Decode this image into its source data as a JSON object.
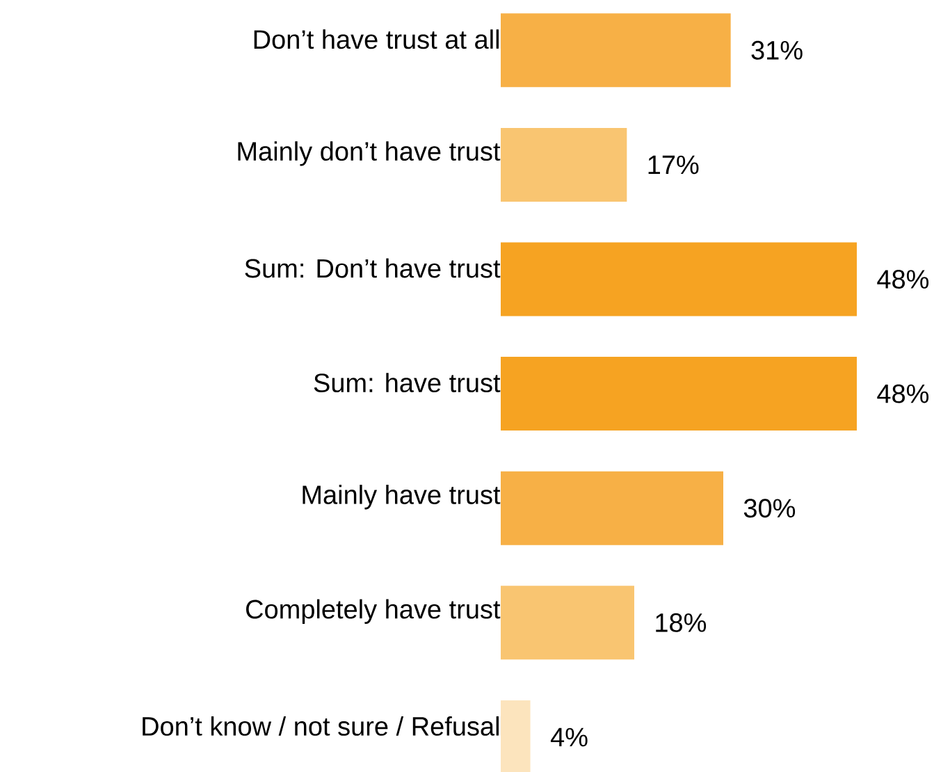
{
  "chart_data": {
    "type": "bar",
    "orientation": "horizontal",
    "categories": [
      "Don’t have trust at all",
      "Mainly don’t have trust",
      "Sum: Don’t have trust",
      "Sum: have trust",
      "Mainly have trust",
      "Completely have trust",
      "Don’t know / not sure / Refusal"
    ],
    "values": [
      31,
      17,
      48,
      48,
      30,
      18,
      4
    ],
    "colors": [
      "#f7b046",
      "#f9c571",
      "#f6a322",
      "#f6a322",
      "#f7b046",
      "#f9c571",
      "#fce4bd"
    ],
    "value_labels": [
      "31%",
      "17%",
      "48%",
      "48%",
      "30%",
      "18%",
      "4%"
    ]
  }
}
